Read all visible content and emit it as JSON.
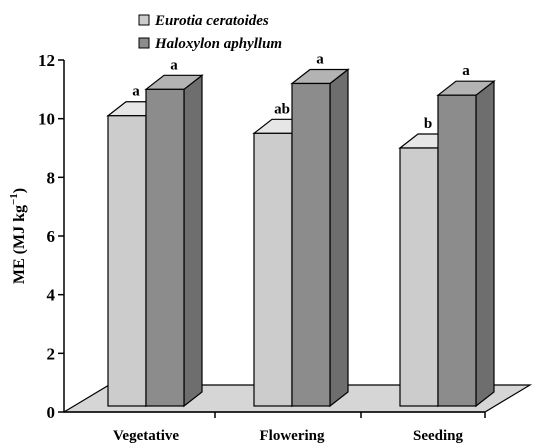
{
  "chart_data": {
    "type": "bar",
    "style": "3d-clustered",
    "categories": [
      "Vegetative",
      "Flowering",
      "Seeding"
    ],
    "series": [
      {
        "name": "Eurotia ceratoides",
        "values": [
          10.1,
          9.5,
          9.0
        ],
        "labels": [
          "a",
          "ab",
          "b"
        ],
        "color": "#cccccc"
      },
      {
        "name": "Haloxylon aphyllum",
        "values": [
          11.0,
          11.2,
          10.8
        ],
        "labels": [
          "a",
          "a",
          "a"
        ],
        "color": "#8c8c8c"
      }
    ],
    "ylabel_text": "ME (MJ kg",
    "ylabel_sup": "−1",
    "ylabel_close": ")",
    "ylim": [
      0,
      12
    ],
    "yticks": [
      0,
      2,
      4,
      6,
      8,
      10,
      12
    ],
    "ytick_labels": [
      "0",
      "2",
      "4",
      "6",
      "8",
      "10",
      "12"
    ],
    "legend_position": "top-left",
    "grid": false
  },
  "colors": {
    "floor": "#d6d6d6",
    "light_front": "#cccccc",
    "light_top": "#e6e6e6",
    "light_side": "#a8a8a8",
    "dark_front": "#8c8c8c",
    "dark_top": "#b3b3b3",
    "dark_side": "#6e6e6e"
  }
}
